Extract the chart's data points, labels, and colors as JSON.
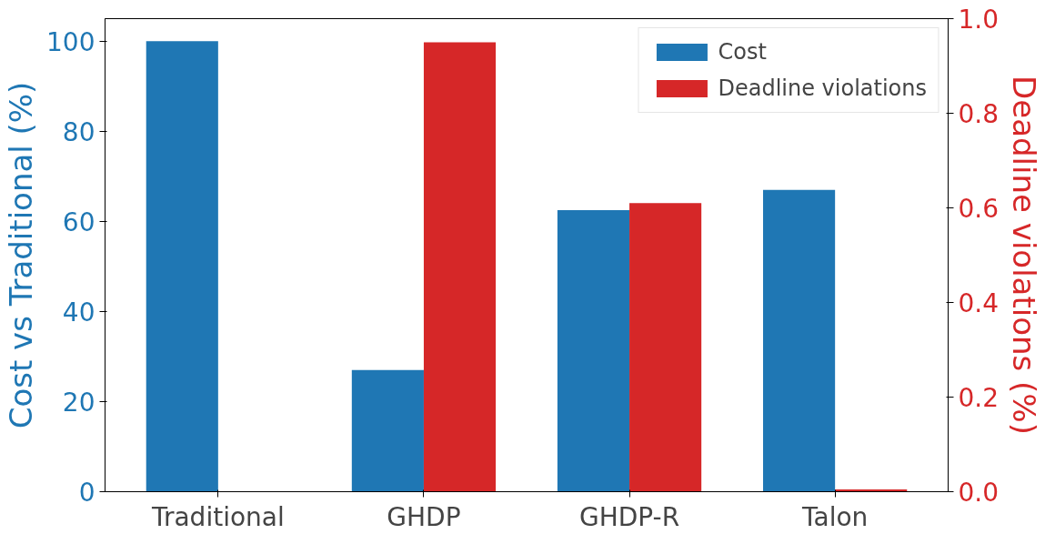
{
  "chart_data": {
    "type": "bar",
    "categories": [
      "Traditional",
      "GHDP",
      "GHDP-R",
      "Talon"
    ],
    "ylabel": "Cost vs Traditional (%)",
    "y2label": "Deadline violations (%)",
    "series": [
      {
        "name": "Cost",
        "color": "#1f77b4",
        "values": [
          100,
          27,
          62.5,
          67
        ]
      },
      {
        "name": "Deadline violations",
        "color": "#d62728",
        "axis": "y2",
        "values": [
          0,
          0.95,
          0.61,
          0.005
        ]
      }
    ],
    "ylim": [
      0,
      105
    ],
    "yticks": [
      0,
      20,
      40,
      60,
      80,
      100
    ],
    "y2lim": [
      0,
      1.0
    ],
    "y2ticks": [
      {
        "value": 0,
        "label": "0.0"
      },
      {
        "value": 0.2,
        "label": "0.2"
      },
      {
        "value": 0.4,
        "label": "0.4"
      },
      {
        "value": 0.6,
        "label": "0.6"
      },
      {
        "value": 0.8,
        "label": "0.8"
      },
      {
        "value": 1.0,
        "label": "1.0"
      }
    ],
    "legend": "top right",
    "grid": false
  }
}
